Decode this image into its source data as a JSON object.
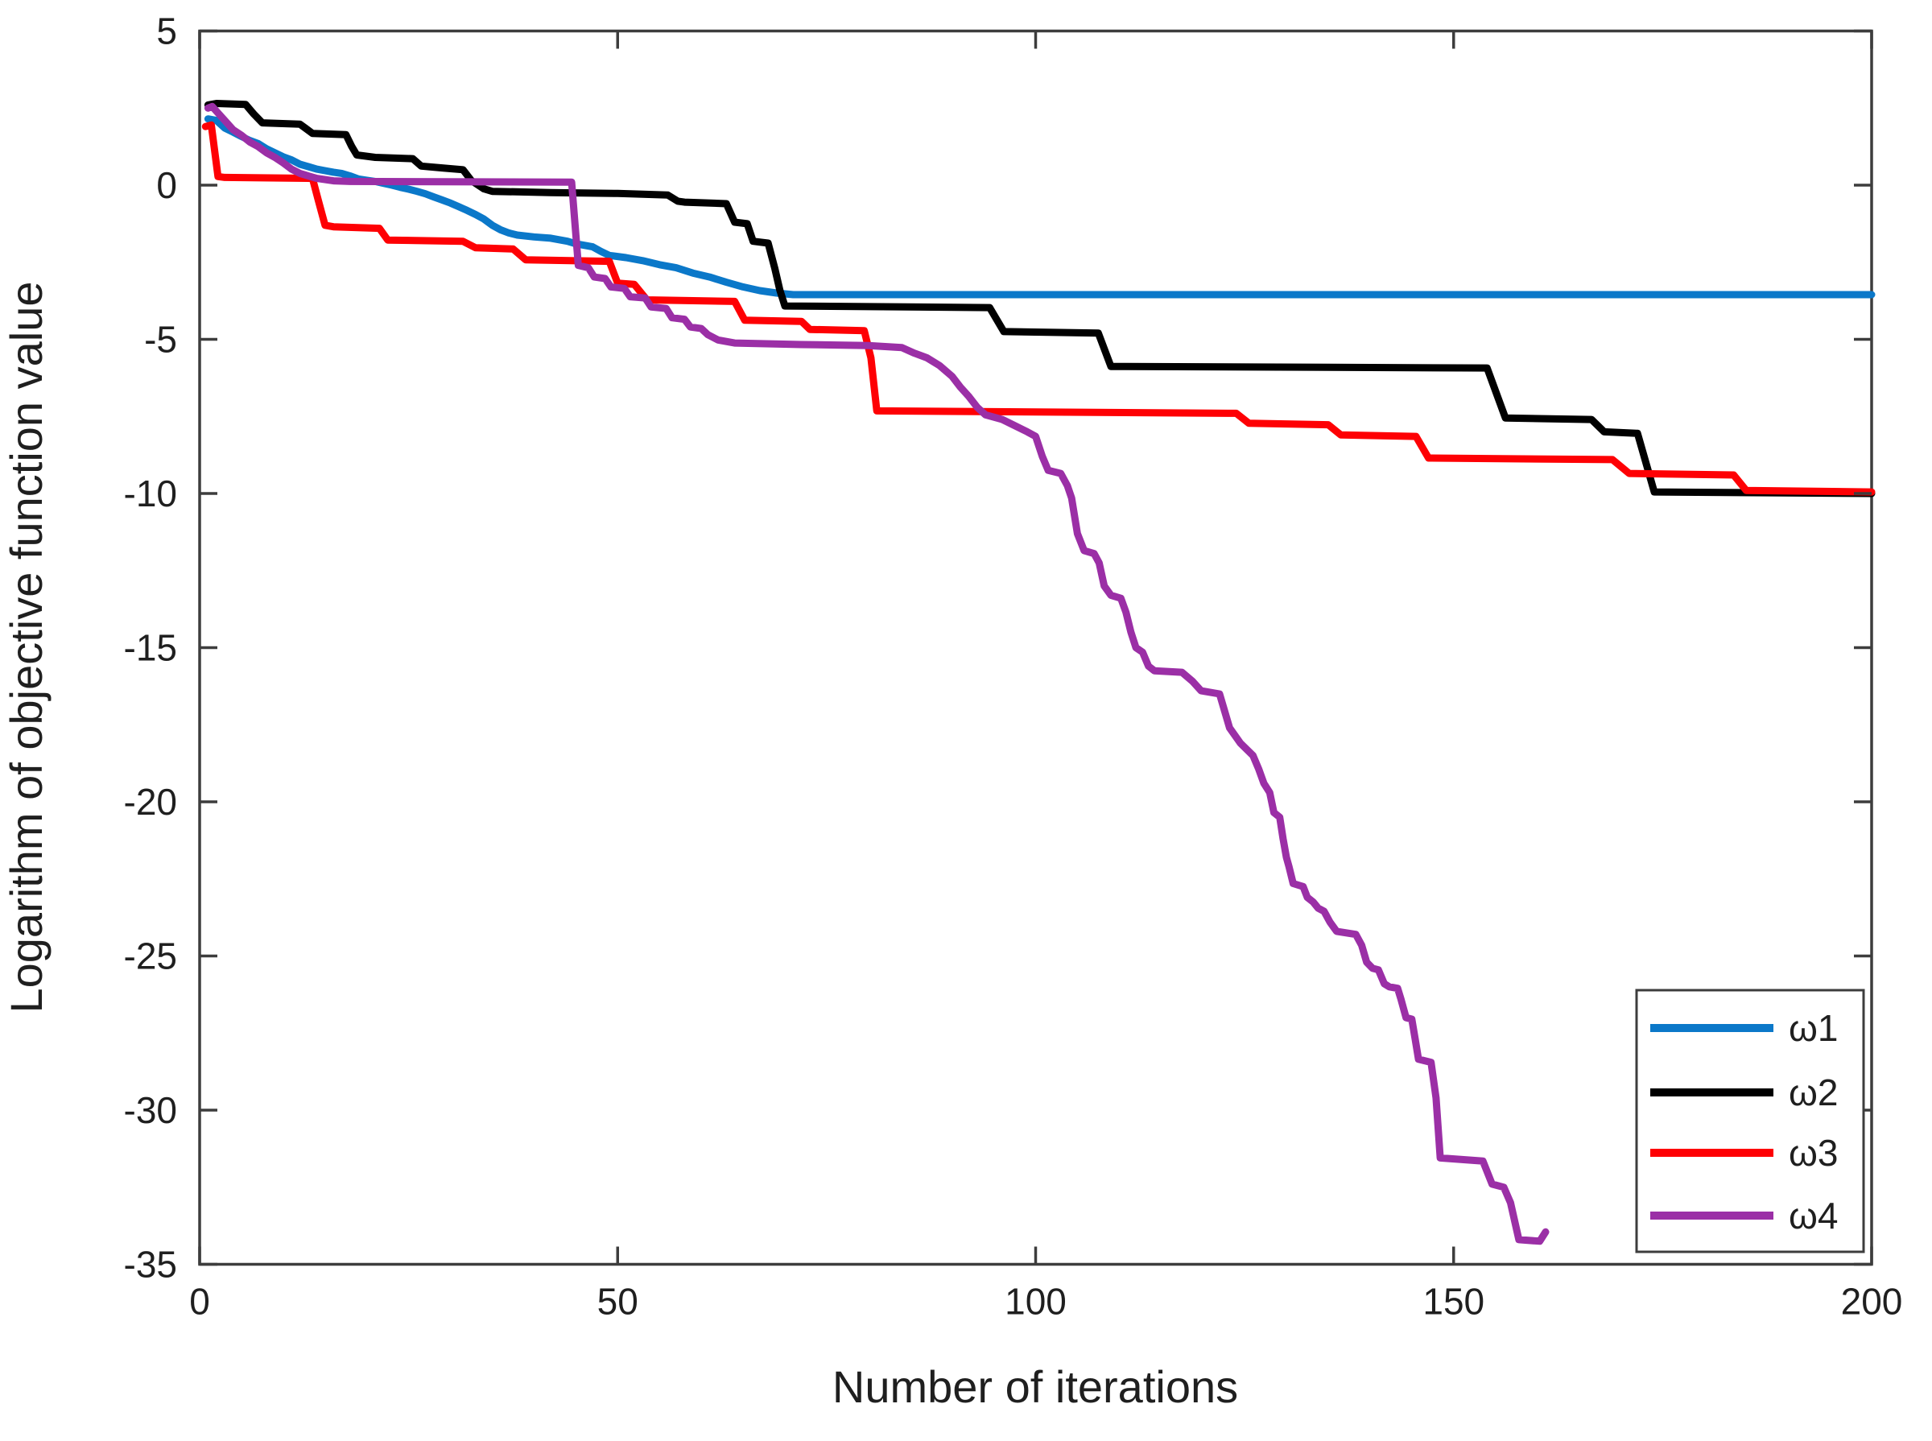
{
  "chart_data": {
    "type": "line",
    "title": "",
    "xlabel": "Number of iterations",
    "ylabel": "Logarithm of objective function value",
    "xlim": [
      0,
      200
    ],
    "ylim": [
      -35,
      5
    ],
    "xticks": [
      0,
      50,
      100,
      150,
      200
    ],
    "yticks": [
      5,
      0,
      -5,
      -10,
      -15,
      -20,
      -25,
      -30,
      -35
    ],
    "grid": false,
    "legend_position": "lower-right",
    "line_width": 9,
    "colors": {
      "axis": "#3d3d3d",
      "text": "#1f1f1f",
      "background": "#ffffff"
    },
    "series": [
      {
        "name": "ω1",
        "color": "#0b78c9",
        "points": [
          [
            1,
            2.15
          ],
          [
            2,
            2.1
          ],
          [
            3,
            1.85
          ],
          [
            4,
            1.72
          ],
          [
            5,
            1.58
          ],
          [
            6,
            1.45
          ],
          [
            7,
            1.35
          ],
          [
            8,
            1.18
          ],
          [
            9,
            1.05
          ],
          [
            10,
            0.92
          ],
          [
            11,
            0.82
          ],
          [
            12,
            0.68
          ],
          [
            13,
            0.6
          ],
          [
            14,
            0.52
          ],
          [
            15,
            0.47
          ],
          [
            16,
            0.42
          ],
          [
            17,
            0.38
          ],
          [
            18,
            0.3
          ],
          [
            19,
            0.2
          ],
          [
            20,
            0.16
          ],
          [
            21,
            0.12
          ],
          [
            22,
            0.06
          ],
          [
            23,
            0.0
          ],
          [
            24,
            -0.07
          ],
          [
            25,
            -0.13
          ],
          [
            26,
            -0.2
          ],
          [
            27,
            -0.28
          ],
          [
            28,
            -0.38
          ],
          [
            29,
            -0.48
          ],
          [
            30,
            -0.58
          ],
          [
            31,
            -0.7
          ],
          [
            32,
            -0.82
          ],
          [
            33,
            -0.95
          ],
          [
            34,
            -1.1
          ],
          [
            35,
            -1.3
          ],
          [
            36,
            -1.45
          ],
          [
            37,
            -1.55
          ],
          [
            38,
            -1.62
          ],
          [
            40,
            -1.68
          ],
          [
            42,
            -1.72
          ],
          [
            44,
            -1.82
          ],
          [
            45,
            -1.9
          ],
          [
            47,
            -2.0
          ],
          [
            48,
            -2.15
          ],
          [
            49,
            -2.28
          ],
          [
            51,
            -2.35
          ],
          [
            53,
            -2.45
          ],
          [
            55,
            -2.58
          ],
          [
            57,
            -2.68
          ],
          [
            59,
            -2.85
          ],
          [
            61,
            -2.98
          ],
          [
            63,
            -3.15
          ],
          [
            65,
            -3.3
          ],
          [
            67,
            -3.42
          ],
          [
            69,
            -3.5
          ],
          [
            71,
            -3.55
          ],
          [
            200,
            -3.55
          ]
        ]
      },
      {
        "name": "ω2",
        "color": "#000000",
        "points": [
          [
            1,
            2.6
          ],
          [
            2,
            2.65
          ],
          [
            5.5,
            2.62
          ],
          [
            6.5,
            2.3
          ],
          [
            7.5,
            2.02
          ],
          [
            12,
            1.98
          ],
          [
            13.5,
            1.68
          ],
          [
            17.5,
            1.64
          ],
          [
            18.2,
            1.25
          ],
          [
            18.8,
            0.98
          ],
          [
            21,
            0.9
          ],
          [
            25.5,
            0.86
          ],
          [
            26.5,
            0.62
          ],
          [
            29,
            0.56
          ],
          [
            31.5,
            0.5
          ],
          [
            32.5,
            0.15
          ],
          [
            34,
            -0.12
          ],
          [
            35,
            -0.2
          ],
          [
            42,
            -0.24
          ],
          [
            50,
            -0.27
          ],
          [
            56,
            -0.32
          ],
          [
            57.2,
            -0.52
          ],
          [
            58,
            -0.55
          ],
          [
            63,
            -0.6
          ],
          [
            64,
            -1.2
          ],
          [
            65.5,
            -1.25
          ],
          [
            66.2,
            -1.82
          ],
          [
            68,
            -1.88
          ],
          [
            68.8,
            -2.7
          ],
          [
            69.4,
            -3.4
          ],
          [
            70,
            -3.92
          ],
          [
            94.5,
            -3.97
          ],
          [
            96.2,
            -4.75
          ],
          [
            107.5,
            -4.8
          ],
          [
            109,
            -5.88
          ],
          [
            154,
            -5.93
          ],
          [
            156.2,
            -7.55
          ],
          [
            166.5,
            -7.6
          ],
          [
            168,
            -8.0
          ],
          [
            172,
            -8.05
          ],
          [
            174,
            -9.95
          ],
          [
            200,
            -10.0
          ]
        ]
      },
      {
        "name": "ω3",
        "color": "#fe0004",
        "points": [
          [
            0.7,
            1.9
          ],
          [
            1.4,
            1.95
          ],
          [
            2.2,
            0.28
          ],
          [
            3,
            0.25
          ],
          [
            13.5,
            0.22
          ],
          [
            14.2,
            -0.5
          ],
          [
            15,
            -1.3
          ],
          [
            16,
            -1.35
          ],
          [
            21.5,
            -1.4
          ],
          [
            22.5,
            -1.78
          ],
          [
            31.5,
            -1.82
          ],
          [
            33,
            -2.03
          ],
          [
            37.5,
            -2.07
          ],
          [
            39,
            -2.42
          ],
          [
            49,
            -2.47
          ],
          [
            50,
            -3.18
          ],
          [
            52,
            -3.22
          ],
          [
            53.5,
            -3.72
          ],
          [
            64,
            -3.77
          ],
          [
            65.2,
            -4.38
          ],
          [
            72,
            -4.42
          ],
          [
            73,
            -4.68
          ],
          [
            79.5,
            -4.72
          ],
          [
            80.3,
            -5.6
          ],
          [
            81,
            -7.32
          ],
          [
            124,
            -7.4
          ],
          [
            125.5,
            -7.72
          ],
          [
            135,
            -7.77
          ],
          [
            136.5,
            -8.1
          ],
          [
            145.5,
            -8.15
          ],
          [
            147,
            -8.85
          ],
          [
            169,
            -8.9
          ],
          [
            171,
            -9.35
          ],
          [
            183.5,
            -9.4
          ],
          [
            185,
            -9.9
          ],
          [
            200,
            -9.95
          ]
        ]
      },
      {
        "name": "ω4",
        "color": "#9b2fa6",
        "points": [
          [
            1,
            2.5
          ],
          [
            1.5,
            2.55
          ],
          [
            2,
            2.4
          ],
          [
            3,
            2.1
          ],
          [
            4,
            1.8
          ],
          [
            5,
            1.62
          ],
          [
            6,
            1.4
          ],
          [
            7,
            1.25
          ],
          [
            8,
            1.05
          ],
          [
            9,
            0.9
          ],
          [
            10,
            0.72
          ],
          [
            11,
            0.52
          ],
          [
            12,
            0.38
          ],
          [
            13,
            0.3
          ],
          [
            14,
            0.22
          ],
          [
            15,
            0.18
          ],
          [
            16,
            0.14
          ],
          [
            18,
            0.12
          ],
          [
            44.5,
            0.1
          ],
          [
            45.3,
            -2.6
          ],
          [
            46.5,
            -2.68
          ],
          [
            47.2,
            -2.98
          ],
          [
            48.5,
            -3.03
          ],
          [
            49.2,
            -3.3
          ],
          [
            50.8,
            -3.35
          ],
          [
            51.5,
            -3.62
          ],
          [
            53.3,
            -3.66
          ],
          [
            54,
            -3.95
          ],
          [
            55.8,
            -4.0
          ],
          [
            56.5,
            -4.3
          ],
          [
            58,
            -4.35
          ],
          [
            58.7,
            -4.6
          ],
          [
            60,
            -4.65
          ],
          [
            60.8,
            -4.85
          ],
          [
            62,
            -5.02
          ],
          [
            64,
            -5.12
          ],
          [
            72,
            -5.17
          ],
          [
            80,
            -5.2
          ],
          [
            84,
            -5.27
          ],
          [
            85.5,
            -5.45
          ],
          [
            87,
            -5.6
          ],
          [
            88.5,
            -5.85
          ],
          [
            90,
            -6.2
          ],
          [
            91,
            -6.55
          ],
          [
            92,
            -6.85
          ],
          [
            93,
            -7.2
          ],
          [
            94,
            -7.45
          ],
          [
            96,
            -7.6
          ],
          [
            97.5,
            -7.8
          ],
          [
            99,
            -8.0
          ],
          [
            100,
            -8.15
          ],
          [
            100.8,
            -8.8
          ],
          [
            101.5,
            -9.25
          ],
          [
            103,
            -9.35
          ],
          [
            103.8,
            -9.75
          ],
          [
            104.3,
            -10.15
          ],
          [
            105,
            -11.3
          ],
          [
            105.8,
            -11.85
          ],
          [
            107,
            -11.95
          ],
          [
            107.6,
            -12.25
          ],
          [
            108.2,
            -13.0
          ],
          [
            109,
            -13.3
          ],
          [
            110.2,
            -13.4
          ],
          [
            110.8,
            -13.85
          ],
          [
            111.4,
            -14.5
          ],
          [
            112,
            -15.0
          ],
          [
            112.8,
            -15.15
          ],
          [
            113.5,
            -15.6
          ],
          [
            114.2,
            -15.75
          ],
          [
            117.5,
            -15.8
          ],
          [
            118.8,
            -16.1
          ],
          [
            119.8,
            -16.4
          ],
          [
            122,
            -16.5
          ],
          [
            123.2,
            -17.6
          ],
          [
            124.5,
            -18.1
          ],
          [
            126,
            -18.5
          ],
          [
            126.7,
            -18.95
          ],
          [
            127.3,
            -19.4
          ],
          [
            128,
            -19.7
          ],
          [
            128.5,
            -20.35
          ],
          [
            129.2,
            -20.5
          ],
          [
            129.6,
            -21.2
          ],
          [
            130,
            -21.8
          ],
          [
            130.3,
            -22.1
          ],
          [
            130.8,
            -22.65
          ],
          [
            132,
            -22.75
          ],
          [
            132.5,
            -23.1
          ],
          [
            133.2,
            -23.25
          ],
          [
            133.8,
            -23.45
          ],
          [
            134.5,
            -23.55
          ],
          [
            135.2,
            -23.9
          ],
          [
            136,
            -24.2
          ],
          [
            138.3,
            -24.3
          ],
          [
            139,
            -24.65
          ],
          [
            139.6,
            -25.2
          ],
          [
            140.3,
            -25.4
          ],
          [
            141,
            -25.45
          ],
          [
            141.7,
            -25.9
          ],
          [
            142.3,
            -26.0
          ],
          [
            143.3,
            -26.05
          ],
          [
            143.7,
            -26.4
          ],
          [
            144.3,
            -27.0
          ],
          [
            145,
            -27.05
          ],
          [
            145.4,
            -27.7
          ],
          [
            145.8,
            -28.35
          ],
          [
            147.3,
            -28.45
          ],
          [
            147.9,
            -29.6
          ],
          [
            148.4,
            -31.55
          ],
          [
            153.5,
            -31.65
          ],
          [
            154.6,
            -32.4
          ],
          [
            156,
            -32.5
          ],
          [
            156.8,
            -33.0
          ],
          [
            157.8,
            -34.2
          ],
          [
            160.3,
            -34.25
          ],
          [
            161,
            -33.95
          ]
        ]
      }
    ],
    "legend": {
      "entries": [
        "ω1",
        "ω2",
        "ω3",
        "ω4"
      ]
    }
  }
}
